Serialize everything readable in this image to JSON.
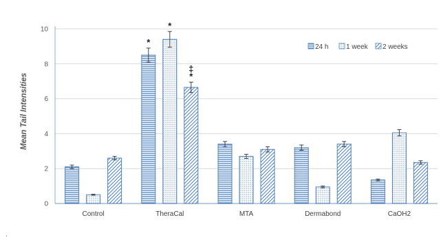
{
  "chart_data": {
    "type": "bar",
    "title": "",
    "xlabel": "",
    "ylabel": "Mean Tail Intensities",
    "categories": [
      "Control",
      "TheraCal",
      "MTA",
      "Dermabond",
      "CaOH2"
    ],
    "ylim": [
      0,
      10
    ],
    "yticks": [
      0,
      2,
      4,
      6,
      8,
      10
    ],
    "grid": true,
    "legend_position": "top-right",
    "series": [
      {
        "name": "24 h",
        "pattern": "horizontal-lines",
        "values": [
          2.1,
          8.5,
          3.4,
          3.2,
          1.35
        ],
        "errors": [
          0.1,
          0.4,
          0.15,
          0.15,
          0.05
        ]
      },
      {
        "name": "1 week",
        "pattern": "dots",
        "values": [
          0.5,
          9.4,
          2.7,
          0.95,
          4.05
        ],
        "errors": [
          0.03,
          0.45,
          0.12,
          0.05,
          0.18
        ]
      },
      {
        "name": "2 weeks",
        "pattern": "diagonal-lines",
        "values": [
          2.6,
          6.65,
          3.1,
          3.4,
          2.35
        ],
        "errors": [
          0.1,
          0.3,
          0.15,
          0.15,
          0.1
        ]
      }
    ],
    "annotations": [
      {
        "category": "TheraCal",
        "series": "24 h",
        "text": "*"
      },
      {
        "category": "TheraCal",
        "series": "1 week",
        "text": "*"
      },
      {
        "category": "TheraCal",
        "series": "2 weeks",
        "text": "*"
      },
      {
        "category": "TheraCal",
        "series": "2 weeks",
        "text": "‡"
      }
    ],
    "colors": {
      "bar_stroke": "#4f81bd",
      "pattern": "#4f81bd",
      "axis": "#8eaadb",
      "grid": "#d9d9d9",
      "error": "#404040"
    }
  },
  "footnote": "."
}
